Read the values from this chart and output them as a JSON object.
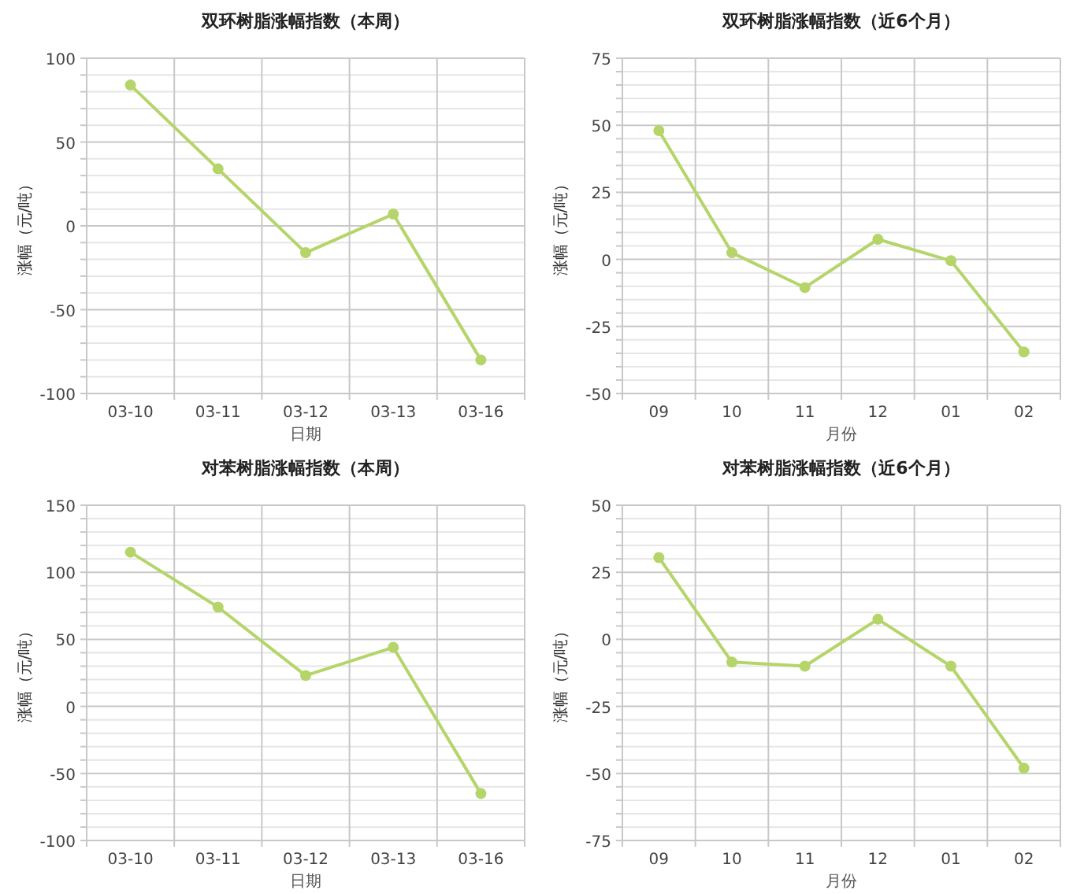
{
  "chart_data": [
    {
      "type": "line",
      "title": "双环树脂涨幅指数（本周）",
      "xlabel": "日期",
      "ylabel": "涨幅（元/吨）",
      "categories": [
        "03-10",
        "03-11",
        "03-12",
        "03-13",
        "03-16"
      ],
      "series": [
        {
          "color": "#b5d56a",
          "values": [
            84,
            34,
            -16,
            7,
            -80
          ]
        }
      ],
      "ylim": [
        -100,
        100
      ],
      "yticks": [
        -100,
        {
          "value": -90,
          "label": null
        },
        {
          "value": -80,
          "label": null
        },
        {
          "value": -70,
          "label": null
        },
        {
          "value": -60,
          "label": null
        },
        -50,
        {
          "value": -40,
          "label": null
        },
        {
          "value": -30,
          "label": null
        },
        {
          "value": -20,
          "label": null
        },
        {
          "value": -10,
          "label": null
        },
        0,
        {
          "value": 10,
          "label": null
        },
        {
          "value": 20,
          "label": null
        },
        {
          "value": 30,
          "label": null
        },
        {
          "value": 40,
          "label": null
        },
        50,
        {
          "value": 60,
          "label": null
        },
        {
          "value": 70,
          "label": null
        },
        {
          "value": 80,
          "label": null
        },
        {
          "value": 90,
          "label": null
        },
        100
      ],
      "grid": true,
      "marker": "circle",
      "line_style": "solid"
    },
    {
      "type": "line",
      "title": "双环树脂涨幅指数（近6个月）",
      "xlabel": "月份",
      "ylabel": "涨幅（元/吨）",
      "categories": [
        "09",
        "10",
        "11",
        "12",
        "01",
        "02"
      ],
      "series": [
        {
          "color": "#b5d56a",
          "values": [
            48,
            2.5,
            -10.5,
            7.5,
            -0.5,
            -34.5
          ]
        }
      ],
      "ylim": [
        -50,
        75
      ],
      "yticks": [
        -50,
        {
          "value": -45,
          "label": null
        },
        {
          "value": -40,
          "label": null
        },
        {
          "value": -35,
          "label": null
        },
        {
          "value": -30,
          "label": null
        },
        -25,
        {
          "value": -20,
          "label": null
        },
        {
          "value": -15,
          "label": null
        },
        {
          "value": -10,
          "label": null
        },
        {
          "value": -5,
          "label": null
        },
        0,
        {
          "value": 5,
          "label": null
        },
        {
          "value": 10,
          "label": null
        },
        {
          "value": 15,
          "label": null
        },
        {
          "value": 20,
          "label": null
        },
        25,
        {
          "value": 30,
          "label": null
        },
        {
          "value": 35,
          "label": null
        },
        {
          "value": 40,
          "label": null
        },
        {
          "value": 45,
          "label": null
        },
        50,
        {
          "value": 55,
          "label": null
        },
        {
          "value": 60,
          "label": null
        },
        {
          "value": 65,
          "label": null
        },
        {
          "value": 70,
          "label": null
        },
        75
      ],
      "grid": true,
      "marker": "circle",
      "line_style": "solid"
    },
    {
      "type": "line",
      "title": "对苯树脂涨幅指数（本周）",
      "xlabel": "日期",
      "ylabel": "涨幅（元/吨）",
      "categories": [
        "03-10",
        "03-11",
        "03-12",
        "03-13",
        "03-16"
      ],
      "series": [
        {
          "color": "#b5d56a",
          "values": [
            115,
            74,
            23,
            44,
            -65
          ]
        }
      ],
      "ylim": [
        -100,
        150
      ],
      "yticks": [
        -100,
        {
          "value": -90,
          "label": null
        },
        {
          "value": -80,
          "label": null
        },
        {
          "value": -70,
          "label": null
        },
        {
          "value": -60,
          "label": null
        },
        -50,
        {
          "value": -40,
          "label": null
        },
        {
          "value": -30,
          "label": null
        },
        {
          "value": -20,
          "label": null
        },
        {
          "value": -10,
          "label": null
        },
        0,
        {
          "value": 10,
          "label": null
        },
        {
          "value": 20,
          "label": null
        },
        {
          "value": 30,
          "label": null
        },
        {
          "value": 40,
          "label": null
        },
        50,
        {
          "value": 60,
          "label": null
        },
        {
          "value": 70,
          "label": null
        },
        {
          "value": 80,
          "label": null
        },
        {
          "value": 90,
          "label": null
        },
        100,
        {
          "value": 110,
          "label": null
        },
        {
          "value": 120,
          "label": null
        },
        {
          "value": 130,
          "label": null
        },
        {
          "value": 140,
          "label": null
        },
        150
      ],
      "grid": true,
      "marker": "circle",
      "line_style": "solid"
    },
    {
      "type": "line",
      "title": "对苯树脂涨幅指数（近6个月）",
      "xlabel": "月份",
      "ylabel": "涨幅（元/吨）",
      "categories": [
        "09",
        "10",
        "11",
        "12",
        "01",
        "02"
      ],
      "series": [
        {
          "color": "#b5d56a",
          "values": [
            30.5,
            -8.5,
            -10,
            7.5,
            -10,
            -48
          ]
        }
      ],
      "ylim": [
        -75,
        50
      ],
      "yticks": [
        -75,
        {
          "value": -70,
          "label": null
        },
        {
          "value": -65,
          "label": null
        },
        {
          "value": -60,
          "label": null
        },
        {
          "value": -55,
          "label": null
        },
        -50,
        {
          "value": -45,
          "label": null
        },
        {
          "value": -40,
          "label": null
        },
        {
          "value": -35,
          "label": null
        },
        {
          "value": -30,
          "label": null
        },
        -25,
        {
          "value": -20,
          "label": null
        },
        {
          "value": -15,
          "label": null
        },
        {
          "value": -10,
          "label": null
        },
        {
          "value": -5,
          "label": null
        },
        0,
        {
          "value": 5,
          "label": null
        },
        {
          "value": 10,
          "label": null
        },
        {
          "value": 15,
          "label": null
        },
        {
          "value": 20,
          "label": null
        },
        25,
        {
          "value": 30,
          "label": null
        },
        {
          "value": 35,
          "label": null
        },
        {
          "value": 40,
          "label": null
        },
        {
          "value": 45,
          "label": null
        },
        50
      ],
      "grid": true,
      "marker": "circle",
      "line_style": "solid"
    }
  ]
}
